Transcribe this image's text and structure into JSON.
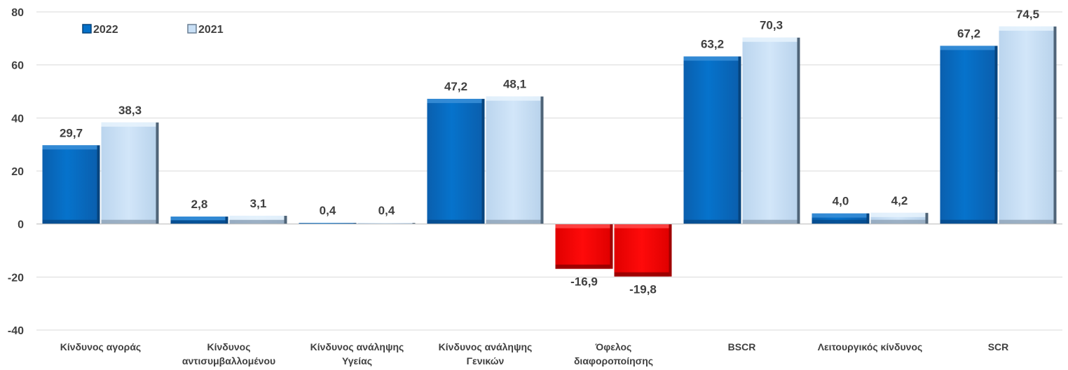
{
  "chart_data": {
    "type": "bar",
    "categories": [
      [
        "Κίνδυνος αγοράς"
      ],
      [
        "Κίνδυνος",
        "αντισυμβαλλομένου"
      ],
      [
        "Κίνδυνος ανάληψης",
        "Υγείας"
      ],
      [
        "Κίνδυνος ανάληψης",
        "Γενικών"
      ],
      [
        "Όφελος",
        "διαφοροποίησης"
      ],
      [
        "BSCR"
      ],
      [
        "Λειτουργικός κίνδυνος"
      ],
      [
        "SCR"
      ]
    ],
    "series": [
      {
        "name": "2022",
        "values": [
          29.7,
          2.8,
          0.4,
          47.2,
          -16.9,
          63.2,
          4.0,
          67.2
        ],
        "labels": [
          "29,7",
          "2,8",
          "0,4",
          "47,2",
          "-16,9",
          "63,2",
          "4,0",
          "67,2"
        ],
        "color": "#0570C8"
      },
      {
        "name": "2021",
        "values": [
          38.3,
          3.1,
          0.4,
          48.1,
          -19.8,
          70.3,
          4.2,
          74.5
        ],
        "labels": [
          "38,3",
          "3,1",
          "0,4",
          "48,1",
          "-19,8",
          "70,3",
          "4,2",
          "74,5"
        ],
        "color": "#C9E0F6"
      }
    ],
    "negative_color": "#F00000",
    "ylim": [
      -40,
      80
    ],
    "yticks": [
      "-40",
      "-20",
      "0",
      "20",
      "40",
      "60",
      "80"
    ],
    "ytick_values": [
      -40,
      -20,
      0,
      20,
      40,
      60,
      80
    ],
    "grid": true,
    "legend_position": "top-left"
  }
}
